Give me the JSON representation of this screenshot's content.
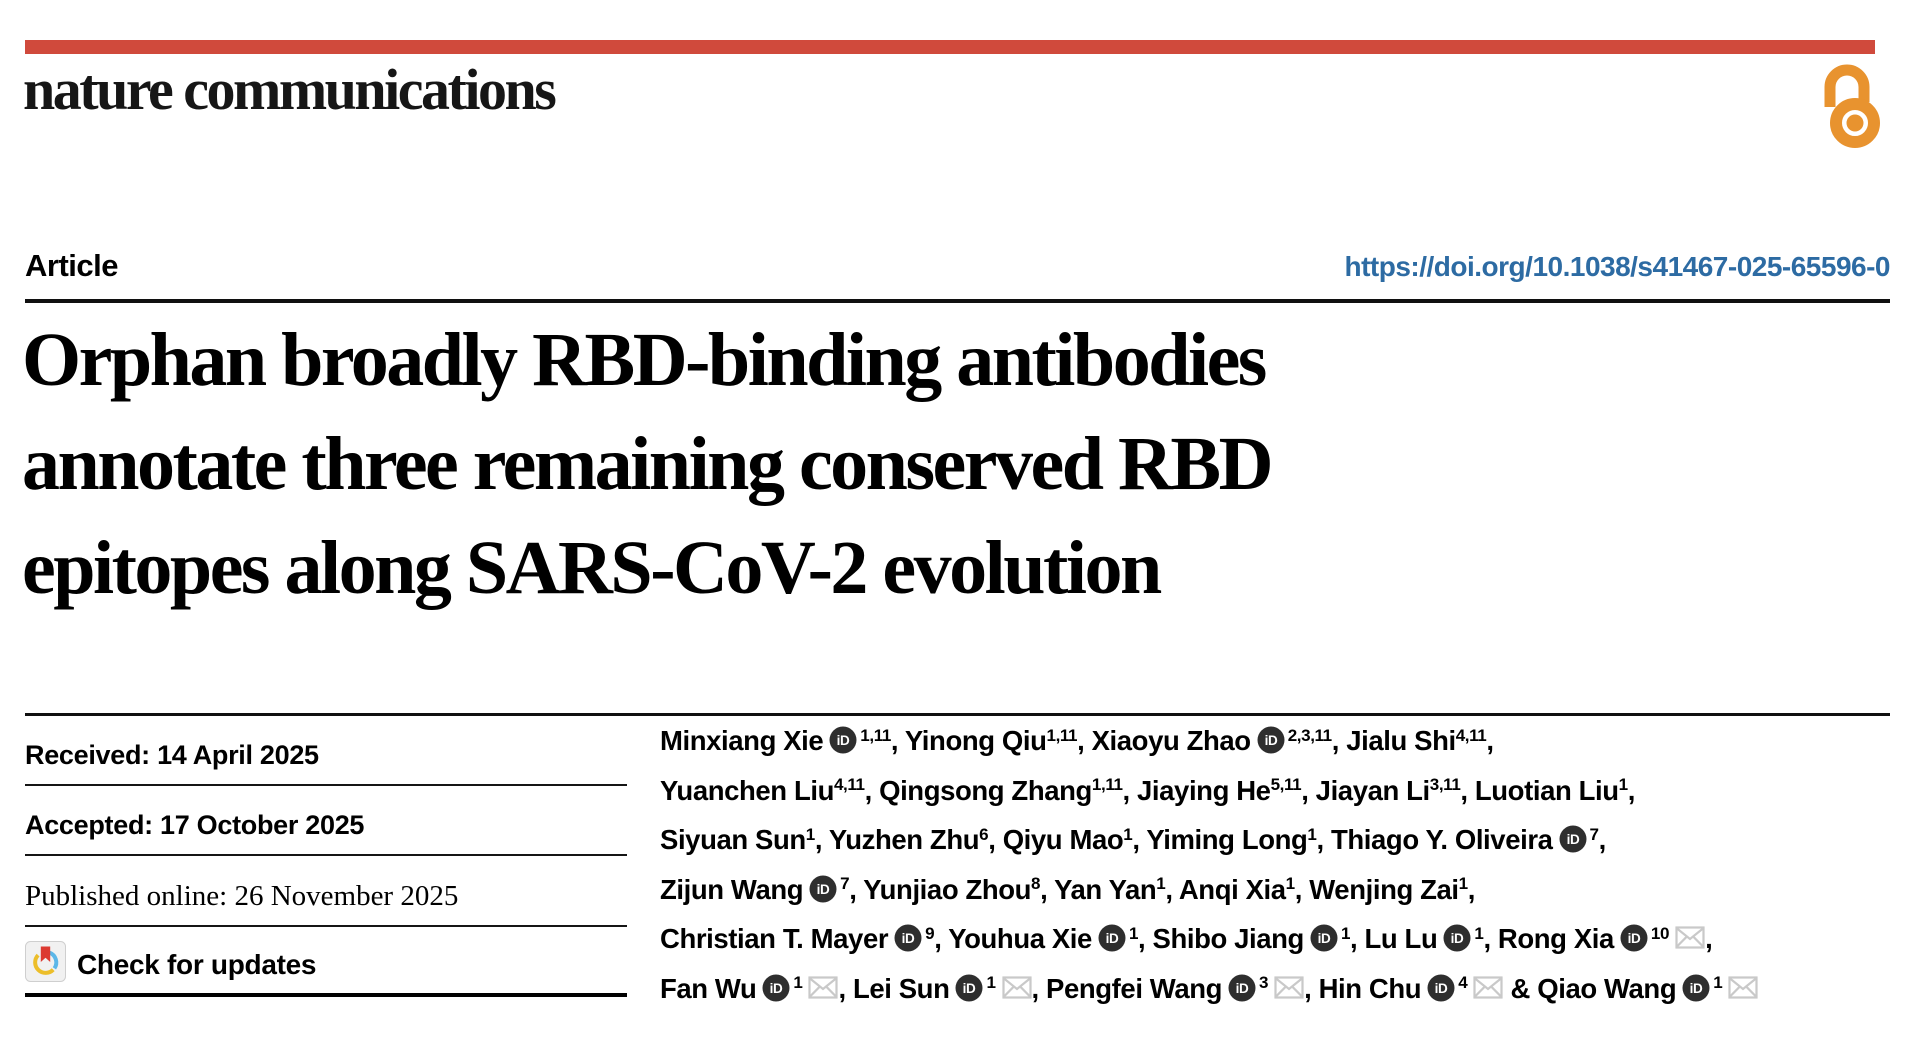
{
  "masthead": {
    "journal": "nature communications",
    "accent_color": "#d04a3c",
    "open_access_color": "#e8932f",
    "open_access_icon": "open-padlock"
  },
  "article": {
    "kicker": "Article",
    "doi": "https://doi.org/10.1038/s41467-025-65596-0",
    "doi_color": "#2d6ba3",
    "title_lines": [
      "Orphan broadly RBD-binding antibodies",
      "annotate three remaining conserved RBD",
      "epitopes along SARS-CoV-2 evolution"
    ]
  },
  "history": {
    "received": "Received: 14 April 2025",
    "accepted": "Accepted: 17 October 2025",
    "published": "Published online: 26 November 2025",
    "check_updates_label": "Check for updates"
  },
  "authors": {
    "lines": [
      [
        {
          "name": "Minxiang Xie",
          "orcid": true,
          "sup": "1,11",
          "sep": ", "
        },
        {
          "name": "Yinong Qiu",
          "sup": "1,11",
          "sep": ", "
        },
        {
          "name": "Xiaoyu Zhao",
          "orcid": true,
          "sup": "2,3,11",
          "sep": ", "
        },
        {
          "name": "Jialu Shi",
          "sup": "4,11",
          "sep": ","
        }
      ],
      [
        {
          "name": "Yuanchen Liu",
          "sup": "4,11",
          "sep": ", "
        },
        {
          "name": "Qingsong Zhang",
          "sup": "1,11",
          "sep": ", "
        },
        {
          "name": "Jiaying He",
          "sup": "5,11",
          "sep": ", "
        },
        {
          "name": "Jiayan Li",
          "sup": "3,11",
          "sep": ", "
        },
        {
          "name": "Luotian Liu",
          "sup": "1",
          "sep": ","
        }
      ],
      [
        {
          "name": "Siyuan Sun",
          "sup": "1",
          "sep": ", "
        },
        {
          "name": "Yuzhen Zhu",
          "sup": "6",
          "sep": ", "
        },
        {
          "name": "Qiyu Mao",
          "sup": "1",
          "sep": ", "
        },
        {
          "name": "Yiming Long",
          "sup": "1",
          "sep": ", "
        },
        {
          "name": "Thiago Y. Oliveira",
          "orcid": true,
          "sup": "7",
          "sep": ","
        }
      ],
      [
        {
          "name": "Zijun Wang",
          "orcid": true,
          "sup": "7",
          "sep": ", "
        },
        {
          "name": "Yunjiao Zhou",
          "sup": "8",
          "sep": ", "
        },
        {
          "name": "Yan Yan",
          "sup": "1",
          "sep": ", "
        },
        {
          "name": "Anqi Xia",
          "sup": "1",
          "sep": ", "
        },
        {
          "name": "Wenjing Zai",
          "sup": "1",
          "sep": ","
        }
      ],
      [
        {
          "name": "Christian T. Mayer",
          "orcid": true,
          "sup": "9",
          "sep": ", "
        },
        {
          "name": "Youhua Xie",
          "orcid": true,
          "sup": "1",
          "sep": ", "
        },
        {
          "name": "Shibo Jiang",
          "orcid": true,
          "sup": "1",
          "sep": ", "
        },
        {
          "name": "Lu Lu",
          "orcid": true,
          "sup": "1",
          "sep": ", "
        },
        {
          "name": "Rong Xia",
          "orcid": true,
          "sup": "10",
          "env": true,
          "sep": ","
        }
      ],
      [
        {
          "name": "Fan Wu",
          "orcid": true,
          "sup": "1",
          "env": true,
          "sep": ", "
        },
        {
          "name": "Lei Sun",
          "orcid": true,
          "sup": "1",
          "env": true,
          "sep": ", "
        },
        {
          "name": "Pengfei Wang",
          "orcid": true,
          "sup": "3",
          "env": true,
          "sep": ", "
        },
        {
          "name": "Hin Chu",
          "orcid": true,
          "sup": "4",
          "env": true,
          "sep": " "
        },
        {
          "name": "Qiao Wang",
          "orcid": true,
          "sup": "1",
          "env": true,
          "pre": "& ",
          "sep": ""
        }
      ]
    ]
  }
}
